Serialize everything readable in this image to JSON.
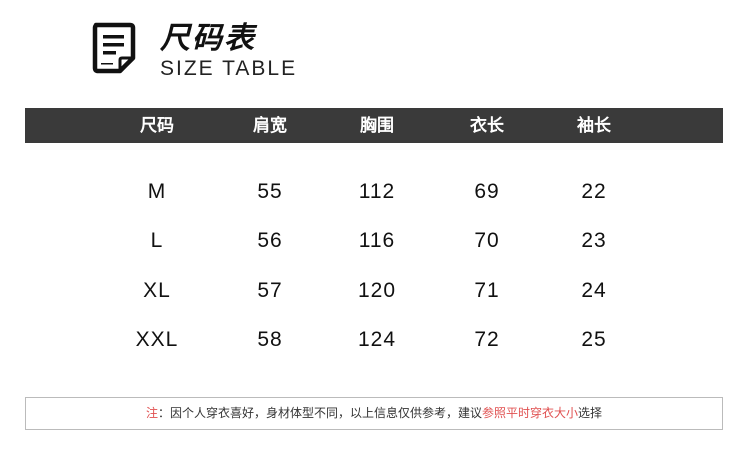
{
  "header": {
    "title_cn": "尺码表",
    "title_en": "SIZE TABLE",
    "icon": "document-icon"
  },
  "table": {
    "columns": [
      "尺码",
      "肩宽",
      "胸围",
      "衣长",
      "袖长"
    ],
    "rows": [
      [
        "M",
        "55",
        "112",
        "69",
        "22"
      ],
      [
        "L",
        "56",
        "116",
        "70",
        "23"
      ],
      [
        "XL",
        "57",
        "120",
        "71",
        "24"
      ],
      [
        "XXL",
        "58",
        "124",
        "72",
        "25"
      ]
    ]
  },
  "note": {
    "prefix": "注",
    "body": "：因个人穿衣喜好，身材体型不同，以上信息仅供参考，建议",
    "highlight": "参照平时穿衣大小",
    "suffix": "选择"
  },
  "colors": {
    "header_bg": "#3a3a3a",
    "accent": "#e05050"
  }
}
